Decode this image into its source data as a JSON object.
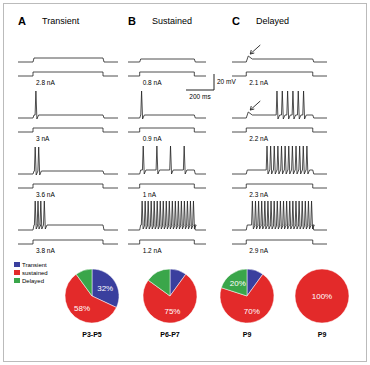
{
  "panels": [
    {
      "letter": "A",
      "title": "Transient",
      "currents": [
        "2.8 nA",
        "3 nA",
        "3.6 nA",
        "3.8 nA"
      ]
    },
    {
      "letter": "B",
      "title": "Sustained",
      "currents": [
        "0.8 nA",
        "0.9 nA",
        "1 nA",
        "1.2 nA"
      ]
    },
    {
      "letter": "C",
      "title": "Delayed",
      "currents": [
        "2.1 nA",
        "2.2 nA",
        "2.3 nA",
        "2.9 nA"
      ]
    }
  ],
  "scale_bar": {
    "voltage": "20 mV",
    "time": "200 ms"
  },
  "chart_data": [
    {
      "type": "pie",
      "title": "P3-P5",
      "categories": [
        "Transient",
        "sustained",
        "Delayed"
      ],
      "values": [
        32,
        58,
        10
      ],
      "value_labels": [
        "32%",
        "58%",
        null
      ],
      "colors": [
        "#3a3f9e",
        "#e32a2a",
        "#3aa64a"
      ],
      "legend": "top-left",
      "data_labels": true
    },
    {
      "type": "pie",
      "title": "P6-P7",
      "values": [
        10,
        75,
        15
      ],
      "value_labels": [
        null,
        "75%",
        null
      ],
      "colors": [
        "#3a3f9e",
        "#e32a2a",
        "#3aa64a"
      ],
      "data_labels": true
    },
    {
      "type": "pie",
      "title": "P9",
      "values": [
        10,
        70,
        20
      ],
      "value_labels": [
        null,
        "70%",
        "20%"
      ],
      "colors": [
        "#3a3f9e",
        "#e32a2a",
        "#3aa64a"
      ],
      "data_labels": true
    },
    {
      "type": "pie",
      "title": "P9",
      "values": [
        0,
        100,
        0
      ],
      "value_labels": [
        null,
        "100%",
        null
      ],
      "colors": [
        "#3a3f9e",
        "#e32a2a",
        "#3aa64a"
      ],
      "data_labels": true
    }
  ]
}
